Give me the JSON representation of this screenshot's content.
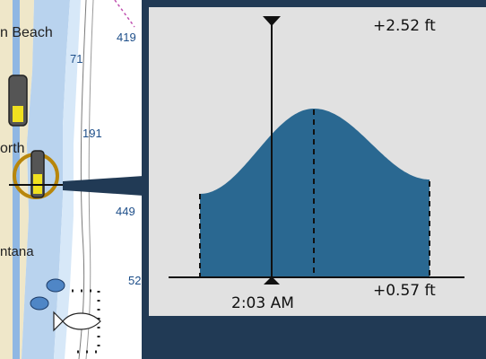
{
  "map": {
    "place_labels": [
      "n Beach",
      "orth",
      "ntana"
    ],
    "depth_labels": [
      "419",
      "71",
      "191",
      "449",
      "52"
    ]
  },
  "tide_panel": {
    "max_label": "+2.52 ft",
    "min_label": "+0.57 ft",
    "time_label": "2:03 AM"
  },
  "colors": {
    "tide_fill": "#2a6891",
    "panel_bg": "#e1e1e1",
    "frame": "#213a55",
    "water_shallow": "#b9d3ee",
    "land": "#efe7c9"
  },
  "icons": [
    "tide-station-icon",
    "fish-haven-icon",
    "buoy-icon"
  ]
}
